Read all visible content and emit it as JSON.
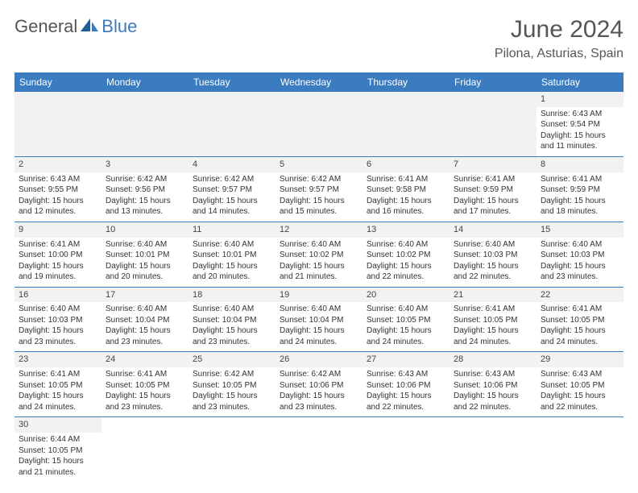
{
  "logo": {
    "text1": "General",
    "text2": "Blue"
  },
  "title": "June 2024",
  "location": "Pilona, Asturias, Spain",
  "colors": {
    "header_bg": "#3b7bbf",
    "border": "#3b7bbf",
    "blank_fill": "#f2f2f2",
    "text": "#333333",
    "title_text": "#555555"
  },
  "day_names": [
    "Sunday",
    "Monday",
    "Tuesday",
    "Wednesday",
    "Thursday",
    "Friday",
    "Saturday"
  ],
  "weeks": [
    [
      {
        "blank": true
      },
      {
        "blank": true
      },
      {
        "blank": true
      },
      {
        "blank": true
      },
      {
        "blank": true
      },
      {
        "blank": true
      },
      {
        "d": "1",
        "sr": "Sunrise: 6:43 AM",
        "ss": "Sunset: 9:54 PM",
        "dl1": "Daylight: 15 hours",
        "dl2": "and 11 minutes."
      }
    ],
    [
      {
        "d": "2",
        "sr": "Sunrise: 6:43 AM",
        "ss": "Sunset: 9:55 PM",
        "dl1": "Daylight: 15 hours",
        "dl2": "and 12 minutes."
      },
      {
        "d": "3",
        "sr": "Sunrise: 6:42 AM",
        "ss": "Sunset: 9:56 PM",
        "dl1": "Daylight: 15 hours",
        "dl2": "and 13 minutes."
      },
      {
        "d": "4",
        "sr": "Sunrise: 6:42 AM",
        "ss": "Sunset: 9:57 PM",
        "dl1": "Daylight: 15 hours",
        "dl2": "and 14 minutes."
      },
      {
        "d": "5",
        "sr": "Sunrise: 6:42 AM",
        "ss": "Sunset: 9:57 PM",
        "dl1": "Daylight: 15 hours",
        "dl2": "and 15 minutes."
      },
      {
        "d": "6",
        "sr": "Sunrise: 6:41 AM",
        "ss": "Sunset: 9:58 PM",
        "dl1": "Daylight: 15 hours",
        "dl2": "and 16 minutes."
      },
      {
        "d": "7",
        "sr": "Sunrise: 6:41 AM",
        "ss": "Sunset: 9:59 PM",
        "dl1": "Daylight: 15 hours",
        "dl2": "and 17 minutes."
      },
      {
        "d": "8",
        "sr": "Sunrise: 6:41 AM",
        "ss": "Sunset: 9:59 PM",
        "dl1": "Daylight: 15 hours",
        "dl2": "and 18 minutes."
      }
    ],
    [
      {
        "d": "9",
        "sr": "Sunrise: 6:41 AM",
        "ss": "Sunset: 10:00 PM",
        "dl1": "Daylight: 15 hours",
        "dl2": "and 19 minutes."
      },
      {
        "d": "10",
        "sr": "Sunrise: 6:40 AM",
        "ss": "Sunset: 10:01 PM",
        "dl1": "Daylight: 15 hours",
        "dl2": "and 20 minutes."
      },
      {
        "d": "11",
        "sr": "Sunrise: 6:40 AM",
        "ss": "Sunset: 10:01 PM",
        "dl1": "Daylight: 15 hours",
        "dl2": "and 20 minutes."
      },
      {
        "d": "12",
        "sr": "Sunrise: 6:40 AM",
        "ss": "Sunset: 10:02 PM",
        "dl1": "Daylight: 15 hours",
        "dl2": "and 21 minutes."
      },
      {
        "d": "13",
        "sr": "Sunrise: 6:40 AM",
        "ss": "Sunset: 10:02 PM",
        "dl1": "Daylight: 15 hours",
        "dl2": "and 22 minutes."
      },
      {
        "d": "14",
        "sr": "Sunrise: 6:40 AM",
        "ss": "Sunset: 10:03 PM",
        "dl1": "Daylight: 15 hours",
        "dl2": "and 22 minutes."
      },
      {
        "d": "15",
        "sr": "Sunrise: 6:40 AM",
        "ss": "Sunset: 10:03 PM",
        "dl1": "Daylight: 15 hours",
        "dl2": "and 23 minutes."
      }
    ],
    [
      {
        "d": "16",
        "sr": "Sunrise: 6:40 AM",
        "ss": "Sunset: 10:03 PM",
        "dl1": "Daylight: 15 hours",
        "dl2": "and 23 minutes."
      },
      {
        "d": "17",
        "sr": "Sunrise: 6:40 AM",
        "ss": "Sunset: 10:04 PM",
        "dl1": "Daylight: 15 hours",
        "dl2": "and 23 minutes."
      },
      {
        "d": "18",
        "sr": "Sunrise: 6:40 AM",
        "ss": "Sunset: 10:04 PM",
        "dl1": "Daylight: 15 hours",
        "dl2": "and 23 minutes."
      },
      {
        "d": "19",
        "sr": "Sunrise: 6:40 AM",
        "ss": "Sunset: 10:04 PM",
        "dl1": "Daylight: 15 hours",
        "dl2": "and 24 minutes."
      },
      {
        "d": "20",
        "sr": "Sunrise: 6:40 AM",
        "ss": "Sunset: 10:05 PM",
        "dl1": "Daylight: 15 hours",
        "dl2": "and 24 minutes."
      },
      {
        "d": "21",
        "sr": "Sunrise: 6:41 AM",
        "ss": "Sunset: 10:05 PM",
        "dl1": "Daylight: 15 hours",
        "dl2": "and 24 minutes."
      },
      {
        "d": "22",
        "sr": "Sunrise: 6:41 AM",
        "ss": "Sunset: 10:05 PM",
        "dl1": "Daylight: 15 hours",
        "dl2": "and 24 minutes."
      }
    ],
    [
      {
        "d": "23",
        "sr": "Sunrise: 6:41 AM",
        "ss": "Sunset: 10:05 PM",
        "dl1": "Daylight: 15 hours",
        "dl2": "and 24 minutes."
      },
      {
        "d": "24",
        "sr": "Sunrise: 6:41 AM",
        "ss": "Sunset: 10:05 PM",
        "dl1": "Daylight: 15 hours",
        "dl2": "and 23 minutes."
      },
      {
        "d": "25",
        "sr": "Sunrise: 6:42 AM",
        "ss": "Sunset: 10:05 PM",
        "dl1": "Daylight: 15 hours",
        "dl2": "and 23 minutes."
      },
      {
        "d": "26",
        "sr": "Sunrise: 6:42 AM",
        "ss": "Sunset: 10:06 PM",
        "dl1": "Daylight: 15 hours",
        "dl2": "and 23 minutes."
      },
      {
        "d": "27",
        "sr": "Sunrise: 6:43 AM",
        "ss": "Sunset: 10:06 PM",
        "dl1": "Daylight: 15 hours",
        "dl2": "and 22 minutes."
      },
      {
        "d": "28",
        "sr": "Sunrise: 6:43 AM",
        "ss": "Sunset: 10:06 PM",
        "dl1": "Daylight: 15 hours",
        "dl2": "and 22 minutes."
      },
      {
        "d": "29",
        "sr": "Sunrise: 6:43 AM",
        "ss": "Sunset: 10:05 PM",
        "dl1": "Daylight: 15 hours",
        "dl2": "and 22 minutes."
      }
    ],
    [
      {
        "d": "30",
        "sr": "Sunrise: 6:44 AM",
        "ss": "Sunset: 10:05 PM",
        "dl1": "Daylight: 15 hours",
        "dl2": "and 21 minutes."
      },
      {
        "blank": true
      },
      {
        "blank": true
      },
      {
        "blank": true
      },
      {
        "blank": true
      },
      {
        "blank": true
      },
      {
        "blank": true
      }
    ]
  ]
}
